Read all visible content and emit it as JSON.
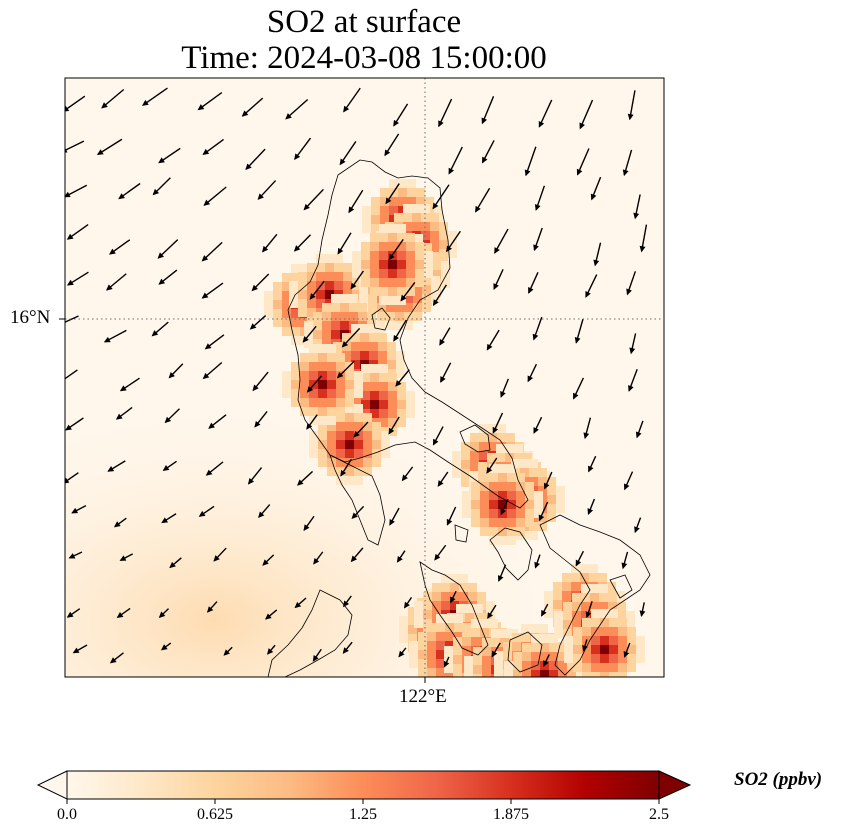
{
  "title": {
    "line1": "SO2 at surface",
    "line2": "Time: 2024-03-08 15:00:00"
  },
  "axes": {
    "lat_label": "16°N",
    "lon_label": "122°E",
    "gridline_style": "dotted"
  },
  "colorbar": {
    "label": "SO2 (ppbv)",
    "ticks": [
      "0.0",
      "0.625",
      "1.25",
      "1.875",
      "2.5"
    ],
    "min": 0.0,
    "max": 2.5,
    "extend": "both",
    "colormap": "OrRd",
    "colors": [
      "#fff7ec",
      "#fee8c8",
      "#fdd49e",
      "#fdbb84",
      "#fc8d59",
      "#ef6548",
      "#d7301f",
      "#b30000",
      "#7f0000"
    ]
  },
  "field": {
    "variable": "SO2",
    "units": "ppbv",
    "level": "surface",
    "wind_vectors": true,
    "wind_direction": "northeasterly"
  }
}
